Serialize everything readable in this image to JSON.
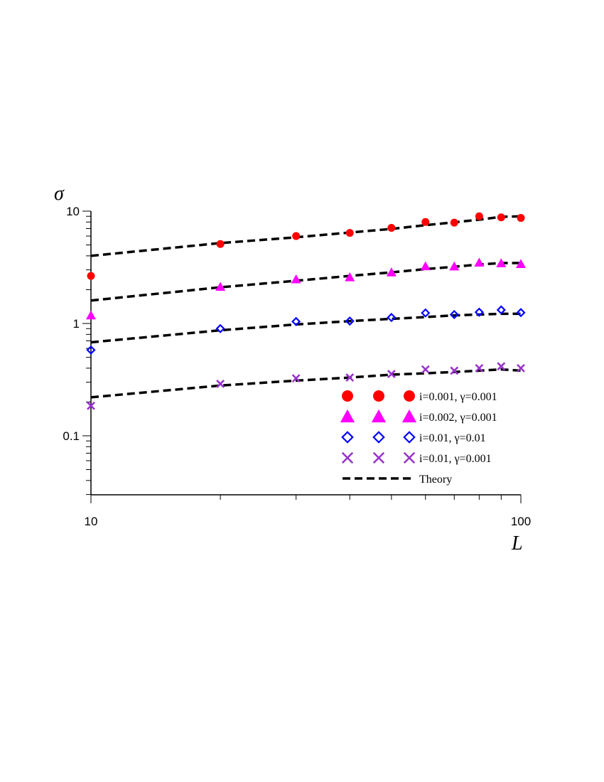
{
  "chart_data": {
    "type": "scatter",
    "xlabel": "L",
    "ylabel": "σ",
    "xscale": "log",
    "yscale": "log",
    "xlim": [
      10,
      100
    ],
    "ylim": [
      0.03,
      10.5
    ],
    "x_ticks": [
      {
        "value": 10,
        "label": "10"
      },
      {
        "value": 100,
        "label": "100"
      }
    ],
    "y_ticks": [
      {
        "value": 10,
        "label": "10"
      },
      {
        "value": 1,
        "label": "1"
      },
      {
        "value": 0.1,
        "label": "0.1"
      }
    ],
    "legend_position": "bottom-right",
    "x": [
      10,
      20,
      30,
      40,
      50,
      60,
      70,
      80,
      90,
      100
    ],
    "series": [
      {
        "name": "i=0.001, γ=0.001",
        "marker": "circle",
        "color": "#ff0000",
        "values": [
          2.65,
          5.1,
          6.0,
          6.4,
          7.1,
          8.0,
          7.9,
          9.0,
          8.8,
          8.7
        ]
      },
      {
        "name": "i=0.002, γ=0.001",
        "marker": "triangle",
        "color": "#ff00ff",
        "values": [
          1.18,
          2.12,
          2.47,
          2.58,
          2.85,
          3.23,
          3.22,
          3.48,
          3.44,
          3.38
        ]
      },
      {
        "name": "i=0.01, γ=0.01",
        "marker": "diamond",
        "color": "#0000ff",
        "values": [
          0.58,
          0.9,
          1.04,
          1.05,
          1.13,
          1.24,
          1.2,
          1.26,
          1.32,
          1.25
        ]
      },
      {
        "name": "i=0.01, γ=0.001",
        "marker": "x",
        "color": "#9933cc",
        "values": [
          0.185,
          0.29,
          0.325,
          0.33,
          0.355,
          0.39,
          0.38,
          0.4,
          0.415,
          0.4
        ]
      }
    ],
    "theory": {
      "name": "Theory",
      "color": "#000000",
      "x": [
        10,
        20,
        30,
        40,
        50,
        60,
        70,
        80,
        90,
        100
      ],
      "lines": [
        [
          4.0,
          5.2,
          5.85,
          6.45,
          6.95,
          7.5,
          7.95,
          8.4,
          8.9,
          9.0
        ],
        [
          1.6,
          2.1,
          2.4,
          2.65,
          2.85,
          3.05,
          3.2,
          3.35,
          3.45,
          3.45
        ],
        [
          0.68,
          0.87,
          0.98,
          1.05,
          1.1,
          1.14,
          1.18,
          1.2,
          1.22,
          1.22
        ],
        [
          0.22,
          0.28,
          0.31,
          0.33,
          0.35,
          0.36,
          0.37,
          0.38,
          0.39,
          0.38
        ]
      ]
    }
  }
}
